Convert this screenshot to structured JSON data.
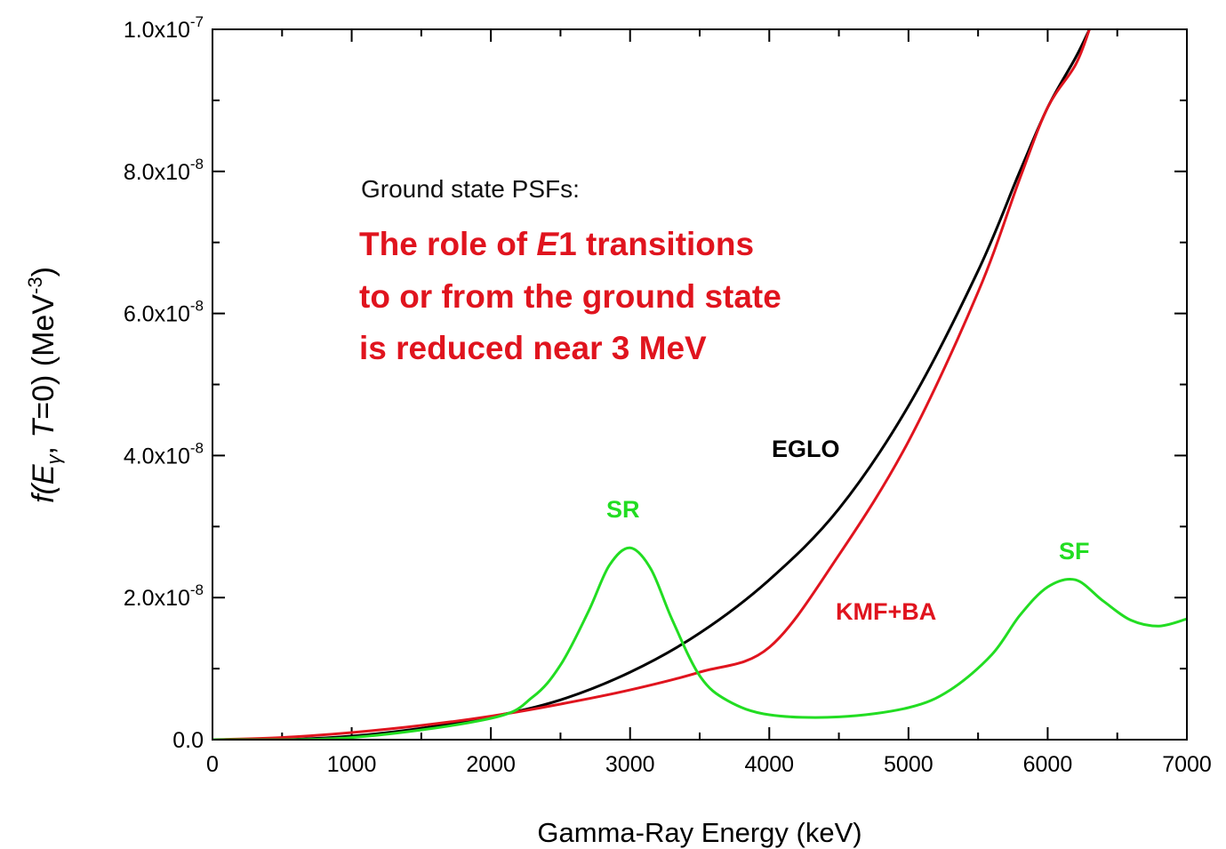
{
  "chart_data": {
    "type": "line",
    "xlabel": "Gamma-Ray Energy (keV)",
    "ylabel": {
      "prefix": "f(",
      "E": "E",
      "gamma": "γ",
      "sep": ", ",
      "T": "T",
      "suffix": "=0) (MeV",
      "exp": "-3",
      "close": ")"
    },
    "xlim": [
      0,
      7000
    ],
    "ylim": [
      0,
      1e-07
    ],
    "x_ticks": [
      0,
      1000,
      2000,
      3000,
      4000,
      5000,
      6000,
      7000
    ],
    "x_tick_labels": [
      "0",
      "1000",
      "2000",
      "3000",
      "4000",
      "5000",
      "6000",
      "7000"
    ],
    "y_ticks": [
      0,
      2e-08,
      4e-08,
      6e-08,
      8e-08,
      1e-07
    ],
    "y_tick_labels": [
      {
        "mantissa": "0.0",
        "exp": ""
      },
      {
        "mantissa": "2.0x10",
        "exp": "-8"
      },
      {
        "mantissa": "4.0x10",
        "exp": "-8"
      },
      {
        "mantissa": "6.0x10",
        "exp": "-8"
      },
      {
        "mantissa": "8.0x10",
        "exp": "-8"
      },
      {
        "mantissa": "1.0x10",
        "exp": "-7"
      }
    ],
    "grid": false,
    "series": [
      {
        "name": "EGLO",
        "color": "#000000",
        "x": [
          0,
          500,
          1000,
          1500,
          2000,
          2500,
          3000,
          3500,
          4000,
          4500,
          5000,
          5500,
          5800,
          6000,
          6200,
          6300
        ],
        "y": [
          0,
          2e-12,
          5e-10,
          1.6e-09,
          3.2e-09,
          5.6e-09,
          9.5e-09,
          1.5e-08,
          2.25e-08,
          3.25e-08,
          4.7e-08,
          6.6e-08,
          8e-08,
          8.9e-08,
          9.6e-08,
          1e-07
        ]
      },
      {
        "name": "KMF+BA",
        "color": "#e0141e",
        "x": [
          0,
          500,
          1000,
          1500,
          2000,
          2500,
          3000,
          3500,
          4000,
          4500,
          5000,
          5500,
          5800,
          6000,
          6200,
          6300
        ],
        "y": [
          0,
          3e-10,
          1e-09,
          2e-09,
          3.3e-09,
          5e-09,
          7e-09,
          9.5e-09,
          1.3e-08,
          2.6e-08,
          4.2e-08,
          6.3e-08,
          7.9e-08,
          8.9e-08,
          9.5e-08,
          1e-07
        ]
      },
      {
        "name": "SR + SF",
        "color": "#22dd22",
        "x": [
          0,
          1000,
          2000,
          2300,
          2500,
          2700,
          2850,
          3000,
          3150,
          3300,
          3500,
          3700,
          4000,
          4500,
          5000,
          5300,
          5600,
          5800,
          6000,
          6200,
          6400,
          6600,
          6800,
          7000
        ],
        "y": [
          0,
          3e-10,
          3e-09,
          6e-09,
          1.05e-08,
          1.8e-08,
          2.45e-08,
          2.7e-08,
          2.4e-08,
          1.7e-08,
          9e-09,
          5.5e-09,
          3.5e-09,
          3.2e-09,
          4.5e-09,
          7e-09,
          1.2e-08,
          1.75e-08,
          2.15e-08,
          2.25e-08,
          1.95e-08,
          1.68e-08,
          1.6e-08,
          1.7e-08
        ]
      }
    ],
    "labels": {
      "eglo": "EGLO",
      "kmfba": "KMF+BA",
      "sr": "SR",
      "sf": "SF"
    },
    "annotations": {
      "heading": "Ground state PSFs:",
      "line1_a": "The role of ",
      "line1_b": "E",
      "line1_c": "1 transitions",
      "line2": "to or from the ground state",
      "line3": "is reduced near 3 MeV"
    },
    "colors": {
      "red": "#e0141e",
      "green": "#22dd22",
      "black": "#000000"
    }
  }
}
